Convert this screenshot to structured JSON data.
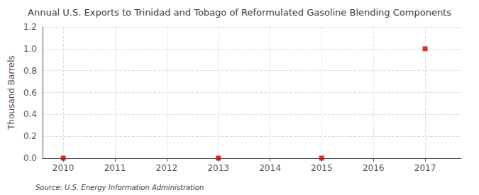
{
  "chart_data": {
    "type": "scatter",
    "title": "Annual U.S. Exports to Trinidad and Tobago of Reformulated Gasoline Blending Components",
    "ylabel": "Thousand Barrels",
    "annotations": [
      "Source: U.S. Energy Information Administration"
    ],
    "x": [
      2010,
      2013,
      2015,
      2017
    ],
    "values": [
      0.0,
      0.0,
      0.0,
      1.0
    ],
    "color": "#cc0000",
    "marker": "square",
    "xlim": [
      2009.6,
      2017.7
    ],
    "xticks": [
      2010,
      2011,
      2012,
      2013,
      2014,
      2015,
      2016,
      2017
    ],
    "ylim": [
      0.0,
      1.2
    ],
    "yticks": [
      {
        "value": 0.0,
        "label": "0.0"
      },
      0.2,
      0.4,
      0.6,
      0.8,
      {
        "value": 1.0,
        "label": "1.0"
      },
      1.2
    ],
    "grid": true
  }
}
